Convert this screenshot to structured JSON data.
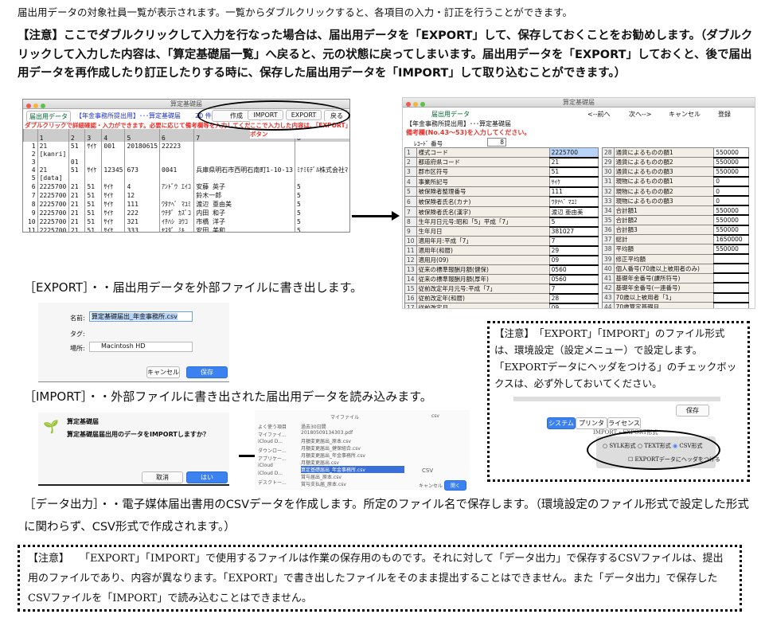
{
  "intro": "届出用データの対象社員一覧が表示されます。一覧からダブルクリックすると、各項目の入力・訂正を行うことができます。",
  "warning": "【注意】ここでダブルクリックして入力を行なった場合は、届出用データを「EXPORT」して、保存しておくことをお勧めします。（ダブルクリックして入力した内容は、「算定基礎届一覧」へ戻ると、元の状態に戻ってしまいます。届出用データを「EXPORT」しておくと、後で届出用データを再作成したり訂正したりする時に、保存した届出用データを「IMPORT」して取り込むことができます。）",
  "list_window": {
    "title": "算定基礎届",
    "tab": "届出用データ",
    "heading": "【年金事務所提出用】･･･算定基礎届",
    "count": "20 件",
    "buttons": [
      "作成",
      "IMPORT",
      "EXPORT",
      "戻る"
    ],
    "hint_left": "ダブルクリックで詳細確認・入力ができます。必要に応じて備考欄等を入力してください。",
    "hint_right": "ここで入力した内容は、「EXPORT」ボタン",
    "columns": [
      "",
      "1",
      "2",
      "3",
      "4",
      "5",
      "6",
      "7",
      "8"
    ],
    "rows": [
      [
        "1",
        "21",
        "51",
        "ｻｲｹ",
        "001",
        "20180615",
        "22223",
        "",
        ""
      ],
      [
        "2",
        "[kanri]",
        "",
        "",
        "",
        "",
        "",
        "",
        ""
      ],
      [
        "3",
        "",
        "01",
        "",
        "",
        "",
        "",
        "",
        ""
      ],
      [
        "4",
        "21",
        "51",
        "ｻｲｹ",
        "12345",
        "673",
        "0041",
        "兵庫県明石市西明石南町1-10-13",
        "ﾐﾅﾐﾓﾃﾞﾙ株式会社ﾏ"
      ],
      [
        "5",
        "[data]",
        "",
        "",
        "",
        "",
        "",
        "",
        ""
      ],
      [
        "6",
        "2225700",
        "21",
        "51",
        "ｻｲｹ",
        "4",
        "ｱﾝﾄﾞｳ ｴｲｺ",
        "安藤 英子",
        "5"
      ],
      [
        "7",
        "2225700",
        "21",
        "51",
        "ｻｲｹ",
        "12",
        "",
        "鈴木一郎",
        "5"
      ],
      [
        "8",
        "2225700",
        "21",
        "51",
        "ｻｲｹ",
        "111",
        "ﾜﾀﾅﾍﾞ ﾏﾕﾐ",
        "渡辺 亜由美",
        "5"
      ],
      [
        "9",
        "2225700",
        "21",
        "51",
        "ｻｲｹ",
        "222",
        "ｳﾁﾀﾞ ｶｽﾞｺ",
        "内田 和子",
        "5"
      ],
      [
        "10",
        "2225700",
        "21",
        "51",
        "ｻｲｹ",
        "321",
        "ｲﾁﾊｼ ﾖｳｺ",
        "市橋 洋子",
        "5"
      ],
      [
        "11",
        "2225700",
        "21",
        "51",
        "ｻｲｹ",
        "333",
        "ﾔｽﾀﾞ ﾐｷ",
        "安田 美和",
        "5"
      ],
      [
        "12",
        "2225700",
        "21",
        "51",
        "ｻｲｹ",
        "400",
        "ｲｼﾔﾏ ｴﾂｺ",
        "石山 悦子",
        "7"
      ]
    ]
  },
  "detail_window": {
    "title": "算定基礎届",
    "tab": "届出用データ",
    "nav": [
      "<--前へ",
      "次へ-->",
      "キャンセル",
      "登録"
    ],
    "heading": "【年金事務所提出用】･･･算定基礎届",
    "hint": "備考欄(No.43〜53)を入力してください。",
    "record_label": "ﾚｺｰﾄﾞ 番号",
    "record_no": "8",
    "left": [
      [
        "1",
        "様式コード",
        "2225700"
      ],
      [
        "2",
        "都道府県コード",
        "21"
      ],
      [
        "3",
        "郡市区符号",
        "51"
      ],
      [
        "4",
        "事業所記号",
        "ｻｲｹ"
      ],
      [
        "5",
        "被保険者整理番号",
        "111"
      ],
      [
        "6",
        "被保険者氏名(カナ)",
        "ﾜﾀﾅﾍﾞ ﾏﾕﾐ"
      ],
      [
        "7",
        "被保険者氏名(漢字)",
        "渡辺 亜由美"
      ],
      [
        "8",
        "生年月日元号:昭和「5」平成「7」",
        "5"
      ],
      [
        "9",
        "生年月日",
        "381027"
      ],
      [
        "10",
        "適用年月:平成「7」",
        "7"
      ],
      [
        "11",
        "適用年(和暦)",
        "29"
      ],
      [
        "12",
        "適用月(09)",
        "09"
      ],
      [
        "13",
        "従来の標準報酬月額(健保)",
        "0560"
      ],
      [
        "14",
        "従来の標準報酬月額(厚年)",
        "0560"
      ],
      [
        "15",
        "従前改定年月元号:平成「7」",
        "7"
      ],
      [
        "16",
        "従前改定年(和暦)",
        "28"
      ],
      [
        "17",
        "従前改定月",
        "09"
      ],
      [
        "18",
        "昇(降)給月",
        "04"
      ],
      [
        "19",
        "昇(降)給区分",
        "1"
      ],
      [
        "20",
        "遡及支払月",
        ""
      ]
    ],
    "right": [
      [
        "28",
        "通貨によるものの額1",
        "550000"
      ],
      [
        "29",
        "通貨によるものの額2",
        "550000"
      ],
      [
        "30",
        "通貨によるものの額3",
        "550000"
      ],
      [
        "31",
        "現物によるものの額1",
        "0"
      ],
      [
        "32",
        "現物によるものの額2",
        "0"
      ],
      [
        "33",
        "現物によるものの額3",
        "0"
      ],
      [
        "34",
        "合計額1",
        "550000"
      ],
      [
        "35",
        "合計額2",
        "550000"
      ],
      [
        "36",
        "合計額3",
        "550000"
      ],
      [
        "37",
        "総計",
        "1650000"
      ],
      [
        "38",
        "平均額",
        "550000"
      ],
      [
        "39",
        "修正平均額",
        ""
      ],
      [
        "40",
        "個人番号(70歳以上被用者のみ)",
        ""
      ],
      [
        "41",
        "基礎年金番号(課所符号)",
        ""
      ],
      [
        "42",
        "基礎年金番号(一連番号)",
        ""
      ],
      [
        "43",
        "70歳以上被用者「1」",
        ""
      ],
      [
        "44",
        "70歳算定基礎月",
        ""
      ],
      [
        "45",
        "二以上事業所勤務「1」",
        ""
      ],
      [
        "46",
        "月変予定「1」",
        ""
      ],
      [
        "47",
        "途中入社「1」",
        ""
      ]
    ]
  },
  "export_section": {
    "text": "［EXPORT］・・届出用データを外部ファイルに書き出します。",
    "name_label": "名前:",
    "name_value": "算定基礎届出_年金事務所.csv",
    "tag_label": "タグ:",
    "place_label": "場所:",
    "place_value": "Macintosh HD",
    "cancel": "キャンセル",
    "save": "保存"
  },
  "import_section": {
    "text": "［IMPORT］・・外部ファイルに書き出された届出用データを読み込みます。",
    "dialog_title": "算定基礎届",
    "dialog_message": "算定基礎届届出用のデータをIMPORTしますか？",
    "cancel": "取消",
    "ok": "はい",
    "file_location": "マイファイル",
    "search": "csv",
    "sidebar": [
      "よく使う項目",
      "マイファイ...",
      "iCloud D...",
      "ダウンロー...",
      "アプリケー...",
      "iCloud",
      "iCloud D...",
      "デスクトー..."
    ],
    "files": [
      "過去30日間",
      "20180509134303.pdf",
      "月額変更届出_原本.csv",
      "月額変更届出_健保組合.csv",
      "月額変更届出_年金事務所.csv",
      "月額変更届出.csv",
      "算定基礎届出_年金事務所.csv",
      "賞与届出_原本.csv",
      "賞与支払届_原本.csv"
    ],
    "selected_file": "算定基礎届出_年金事務所.csv",
    "preview": "CSV",
    "cancel2": "キャンセル",
    "open": "開く"
  },
  "settings_note": {
    "text": "【注意】　「EXPORT」「IMPORT」のファイル形式は、環境設定（設定メニュー）で設定します。「EXPORTデータにヘッダをつける」のチェックボックスは、必ず外しておいてください。",
    "save": "保存",
    "tabs": [
      "システム",
      "プリンタ",
      "ライセンス"
    ],
    "group": "IMPORT・EXPORT形式",
    "options": [
      "SYLK形式",
      "TEXT形式",
      "CSV形式"
    ],
    "selected": "CSV形式",
    "checkbox": "EXPORTデータにヘッダをつける",
    "checkbox_checked": false
  },
  "data_output": {
    "text": "［データ出力］・・電子媒体届出書用のCSVデータを作成します。所定のファイル名で保存します。（環境設定のファイル形式で設定した形式に関わらず、CSV形式で作成されます。）"
  },
  "bottom_note": {
    "text": "【注意】　　「EXPORT」「IMPORT」で使用するファイルは作業の保存用のものです。それに対して「データ出力」で保存するCSVファイルは、提出用のファイルであり、内容が異なります。「EXPORT」で書き出したファイルをそのまま提出することはできません。また「データ出力」で保存したCSVファイルを「IMPORT」で読み込むことはできません。"
  },
  "colors": {
    "accent": "#3b82f0",
    "warning_red": "#e8302a",
    "heading_blue": "#2233cc"
  }
}
